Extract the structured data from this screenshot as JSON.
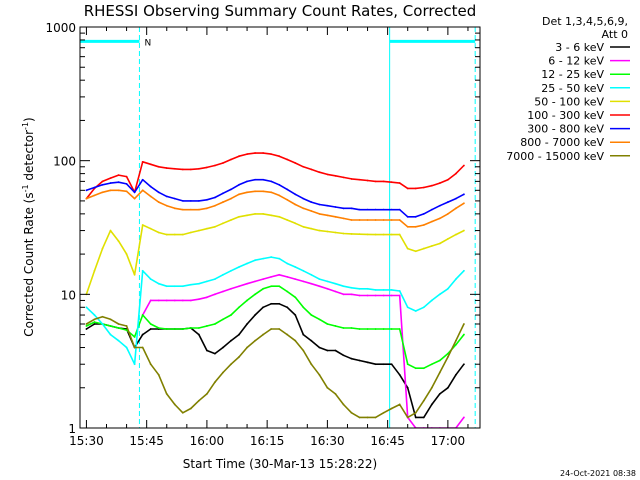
{
  "chart_data": {
    "type": "line",
    "title": "RHESSI Observing Summary Count Rates, Corrected",
    "xlabel": "Start Time (30-Mar-13 15:28:22)",
    "ylabel": "Corrected Count Rate (s⁻¹ detector⁻¹)",
    "y_scale": "log",
    "ylim": [
      1,
      1000
    ],
    "xlim_minutes": [
      -1.6,
      98.0
    ],
    "x_ticks": [
      {
        "label": "15:30",
        "value": 0
      },
      {
        "label": "15:45",
        "value": 15
      },
      {
        "label": "16:00",
        "value": 30
      },
      {
        "label": "16:15",
        "value": 45
      },
      {
        "label": "16:30",
        "value": 60
      },
      {
        "label": "16:45",
        "value": 75
      },
      {
        "label": "17:00",
        "value": 90
      }
    ],
    "y_ticks": [
      {
        "label": "1",
        "value": 1
      },
      {
        "label": "10",
        "value": 10
      },
      {
        "label": "100",
        "value": 100
      },
      {
        "label": "1000",
        "value": 1000
      }
    ],
    "legend_header": [
      "Det 1,3,4,5,6,9,",
      "Att 0"
    ],
    "legend_placement": "right",
    "grid": false,
    "series": [
      {
        "name": "3 - 6 keV",
        "color": "#000000",
        "x": [
          0,
          2,
          4,
          6,
          8,
          10,
          12,
          14,
          16,
          18,
          20,
          22,
          24,
          26,
          28,
          30,
          32,
          34,
          36,
          38,
          40,
          42,
          44,
          46,
          48,
          50,
          52,
          54,
          56,
          58,
          60,
          62,
          64,
          66,
          68,
          70,
          72,
          74,
          76,
          78,
          80,
          82,
          84,
          86,
          88,
          90,
          92,
          94
        ],
        "y": [
          5.5,
          6,
          6,
          5.8,
          5.6,
          5.5,
          4,
          5,
          5.5,
          5.5,
          5.5,
          5.5,
          5.5,
          5.6,
          5,
          3.8,
          3.6,
          4,
          4.5,
          5,
          6,
          7,
          8,
          8.5,
          8.5,
          8,
          7,
          5,
          4.5,
          4,
          3.8,
          3.8,
          3.5,
          3.3,
          3.2,
          3.1,
          3,
          3,
          3,
          2.5,
          2,
          1.2,
          1.2,
          1.5,
          1.8,
          2,
          2.5,
          3
        ]
      },
      {
        "name": "6 - 12 keV",
        "color": "#ff00ff",
        "x": [
          0,
          2,
          4,
          6,
          8,
          10,
          12,
          14,
          16,
          18,
          20,
          22,
          24,
          26,
          28,
          30,
          32,
          34,
          36,
          38,
          40,
          42,
          44,
          46,
          48,
          50,
          52,
          54,
          56,
          58,
          60,
          62,
          64,
          66,
          68,
          70,
          72,
          74,
          76,
          78,
          80,
          82,
          84,
          86,
          88,
          90,
          92,
          94
        ],
        "y": [
          null,
          null,
          null,
          null,
          null,
          null,
          null,
          7,
          9,
          9,
          9,
          9,
          9,
          9,
          9.2,
          9.5,
          10,
          10.5,
          11,
          11.5,
          12,
          12.5,
          13,
          13.5,
          14,
          13.5,
          13,
          12.5,
          12,
          11.5,
          11,
          10.5,
          10,
          10,
          9.8,
          9.8,
          9.8,
          9.8,
          9.8,
          9.8,
          1.2,
          1,
          1,
          1,
          1,
          1,
          1,
          1.2
        ]
      },
      {
        "name": "12 - 25 keV",
        "color": "#00ff00",
        "x": [
          0,
          2,
          4,
          6,
          8,
          10,
          12,
          14,
          16,
          18,
          20,
          22,
          24,
          26,
          28,
          30,
          32,
          34,
          36,
          38,
          40,
          42,
          44,
          46,
          48,
          50,
          52,
          54,
          56,
          58,
          60,
          62,
          64,
          66,
          68,
          70,
          72,
          74,
          76,
          78,
          80,
          82,
          84,
          86,
          88,
          90,
          92,
          94
        ],
        "y": [
          5.8,
          6.2,
          6,
          5.8,
          5.6,
          5.4,
          4.8,
          7,
          6,
          5.6,
          5.5,
          5.5,
          5.5,
          5.6,
          5.6,
          5.8,
          6,
          6.5,
          7,
          8,
          9,
          10,
          11,
          11.5,
          11.5,
          10.5,
          9.5,
          8,
          7,
          6.5,
          6,
          5.8,
          5.6,
          5.6,
          5.5,
          5.5,
          5.5,
          5.5,
          5.5,
          5.5,
          3,
          2.8,
          2.8,
          3,
          3.2,
          3.6,
          4.2,
          5
        ]
      },
      {
        "name": "25 - 50 keV",
        "color": "#00ffff",
        "x": [
          0,
          2,
          4,
          6,
          8,
          10,
          12,
          14,
          16,
          18,
          20,
          22,
          24,
          26,
          28,
          30,
          32,
          34,
          36,
          38,
          40,
          42,
          44,
          46,
          48,
          50,
          52,
          54,
          56,
          58,
          60,
          62,
          64,
          66,
          68,
          70,
          72,
          74,
          76,
          78,
          80,
          82,
          84,
          86,
          88,
          90,
          92,
          94
        ],
        "y": [
          8,
          7,
          6,
          5,
          4.5,
          4,
          3,
          15,
          13,
          12,
          11.5,
          11.5,
          11.5,
          11.8,
          12,
          12.5,
          13,
          14,
          15,
          16,
          17,
          18,
          18.5,
          19,
          18.5,
          17,
          16,
          15,
          14,
          13,
          12.5,
          12,
          11.5,
          11.2,
          11,
          11,
          10.8,
          10.8,
          10.8,
          10.6,
          8,
          7.5,
          8,
          9,
          10,
          11,
          13,
          15
        ]
      },
      {
        "name": "50 - 100 keV",
        "color": "#e0e000",
        "x": [
          0,
          2,
          4,
          6,
          8,
          10,
          12,
          14,
          16,
          18,
          20,
          22,
          24,
          26,
          28,
          30,
          32,
          34,
          36,
          38,
          40,
          42,
          44,
          46,
          48,
          50,
          52,
          54,
          56,
          58,
          60,
          62,
          64,
          66,
          68,
          70,
          72,
          74,
          76,
          78,
          80,
          82,
          84,
          86,
          88,
          90,
          92,
          94
        ],
        "y": [
          10,
          15,
          22,
          30,
          25,
          20,
          14,
          33,
          31,
          29,
          28,
          28,
          28,
          29,
          30,
          31,
          32,
          34,
          36,
          38,
          39,
          40,
          40,
          39,
          38,
          36,
          34,
          32,
          31,
          30,
          29.5,
          29,
          28.5,
          28.3,
          28.2,
          28.1,
          28,
          28,
          28,
          28,
          22,
          21,
          22,
          23,
          24,
          26,
          28,
          30
        ]
      },
      {
        "name": "100 - 300 keV",
        "color": "#ff0000",
        "x": [
          0,
          2,
          4,
          6,
          8,
          10,
          12,
          14,
          16,
          18,
          20,
          22,
          24,
          26,
          28,
          30,
          32,
          34,
          36,
          38,
          40,
          42,
          44,
          46,
          48,
          50,
          52,
          54,
          56,
          58,
          60,
          62,
          64,
          66,
          68,
          70,
          72,
          74,
          76,
          78,
          80,
          82,
          84,
          86,
          88,
          90,
          92,
          94
        ],
        "y": [
          52,
          62,
          70,
          74,
          78,
          76,
          58,
          98,
          94,
          90,
          88,
          87,
          86,
          86,
          87,
          89,
          92,
          96,
          102,
          108,
          112,
          114,
          114,
          112,
          108,
          102,
          96,
          90,
          86,
          82,
          79,
          77,
          75,
          73,
          72,
          71,
          70,
          70,
          69,
          68,
          62,
          62,
          63,
          65,
          68,
          72,
          80,
          92
        ]
      },
      {
        "name": "300 - 800 keV",
        "color": "#0000ff",
        "x": [
          0,
          2,
          4,
          6,
          8,
          10,
          12,
          14,
          16,
          18,
          20,
          22,
          24,
          26,
          28,
          30,
          32,
          34,
          36,
          38,
          40,
          42,
          44,
          46,
          48,
          50,
          52,
          54,
          56,
          58,
          60,
          62,
          64,
          66,
          68,
          70,
          72,
          74,
          76,
          78,
          80,
          82,
          84,
          86,
          88,
          90,
          92,
          94
        ],
        "y": [
          60,
          63,
          66,
          68,
          69,
          67,
          58,
          72,
          64,
          58,
          54,
          52,
          50,
          50,
          50,
          51,
          53,
          57,
          61,
          66,
          70,
          72,
          72,
          70,
          66,
          61,
          56,
          52,
          49,
          47,
          46,
          45,
          44,
          44,
          43,
          43,
          43,
          43,
          43,
          43,
          38,
          38,
          40,
          43,
          46,
          49,
          52,
          56
        ]
      },
      {
        "name": "800 - 7000 keV",
        "color": "#ff8000",
        "x": [
          0,
          2,
          4,
          6,
          8,
          10,
          12,
          14,
          16,
          18,
          20,
          22,
          24,
          26,
          28,
          30,
          32,
          34,
          36,
          38,
          40,
          42,
          44,
          46,
          48,
          50,
          52,
          54,
          56,
          58,
          60,
          62,
          64,
          66,
          68,
          70,
          72,
          74,
          76,
          78,
          80,
          82,
          84,
          86,
          88,
          90,
          92,
          94
        ],
        "y": [
          52,
          55,
          58,
          60,
          60,
          59,
          52,
          60,
          54,
          49,
          46,
          44,
          43,
          43,
          43,
          44,
          46,
          49,
          52,
          56,
          58,
          59,
          59,
          58,
          55,
          51,
          47,
          44,
          42,
          40,
          39,
          38,
          37,
          36,
          36,
          36,
          36,
          36,
          36,
          36,
          32,
          32,
          33,
          35,
          37,
          40,
          44,
          48
        ]
      },
      {
        "name": "7000 - 15000 keV",
        "color": "#808000",
        "x": [
          0,
          2,
          4,
          6,
          8,
          10,
          12,
          14,
          16,
          18,
          20,
          22,
          24,
          26,
          28,
          30,
          32,
          34,
          36,
          38,
          40,
          42,
          44,
          46,
          48,
          50,
          52,
          54,
          56,
          58,
          60,
          62,
          64,
          66,
          68,
          70,
          72,
          74,
          76,
          78,
          80,
          82,
          84,
          86,
          88,
          90,
          92,
          94
        ],
        "y": [
          6,
          6.5,
          6.8,
          6.5,
          6,
          5.8,
          4,
          4,
          3,
          2.5,
          1.8,
          1.5,
          1.3,
          1.4,
          1.6,
          1.8,
          2.2,
          2.6,
          3,
          3.4,
          4,
          4.5,
          5,
          5.5,
          5.5,
          5,
          4.5,
          3.8,
          3,
          2.5,
          2,
          1.8,
          1.5,
          1.3,
          1.2,
          1.2,
          1.2,
          1.3,
          1.4,
          1.5,
          1.2,
          1.3,
          1.6,
          2,
          2.6,
          3.4,
          4.5,
          6
        ]
      }
    ],
    "annotations": [
      {
        "type": "bar",
        "label": "N",
        "color": "#00ffff",
        "x_start": -1.6,
        "x_end": 13.2,
        "y": 780
      },
      {
        "type": "bar",
        "label": "",
        "color": "#00ffff",
        "x_start": 75.5,
        "x_end": 96.8,
        "y": 780
      },
      {
        "type": "vline",
        "color": "#00ffff",
        "style": "solid",
        "x": -1.6
      },
      {
        "type": "vline",
        "color": "#00ffff",
        "style": "dashed",
        "x": 13.2
      },
      {
        "type": "vline",
        "color": "#00ffff",
        "style": "solid",
        "x": 75.5
      },
      {
        "type": "vline",
        "color": "#00ffff",
        "style": "dashed",
        "x": 96.8
      }
    ]
  },
  "timestamp": "24-Oct-2021 08:38"
}
